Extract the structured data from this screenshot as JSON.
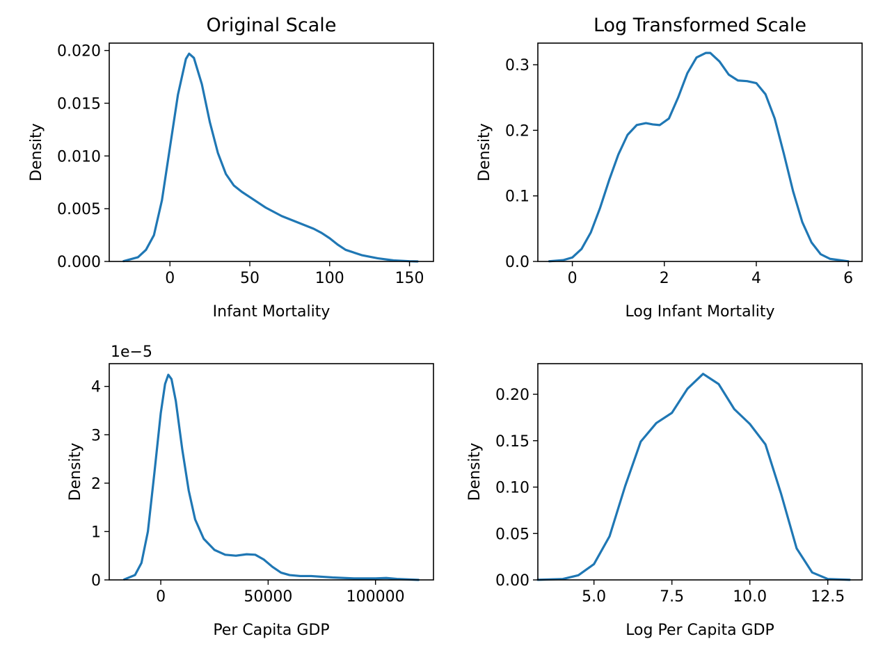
{
  "figure": {
    "line_color": "#1f77b4"
  },
  "chart_data": [
    {
      "type": "line",
      "title": "Original Scale",
      "xlabel": "Infant Mortality",
      "ylabel": "Density",
      "offset_label": "",
      "xlim": [
        -38,
        165
      ],
      "ylim": [
        0,
        0.0207
      ],
      "x_ticks": [
        0,
        50,
        100,
        150
      ],
      "x_tick_labels": [
        "0",
        "50",
        "100",
        "150"
      ],
      "y_ticks": [
        0,
        0.005,
        0.01,
        0.015,
        0.02
      ],
      "y_tick_labels": [
        "0.000",
        "0.005",
        "0.010",
        "0.015",
        "0.020"
      ],
      "grid": false,
      "series": [
        {
          "x": [
            -29,
            -20,
            -15,
            -10,
            -5,
            0,
            5,
            10,
            12,
            15,
            20,
            25,
            30,
            35,
            40,
            45,
            50,
            60,
            70,
            80,
            90,
            95,
            100,
            105,
            110,
            120,
            130,
            140,
            150,
            155
          ],
          "y": [
            3e-05,
            0.0004,
            0.0011,
            0.0025,
            0.0058,
            0.0108,
            0.0158,
            0.0192,
            0.0197,
            0.0193,
            0.0168,
            0.0132,
            0.0103,
            0.0083,
            0.0072,
            0.0066,
            0.0061,
            0.0051,
            0.0043,
            0.0037,
            0.0031,
            0.0027,
            0.0022,
            0.0016,
            0.0011,
            0.0006,
            0.0003,
            0.0001,
            2e-05,
            0.0
          ]
        }
      ]
    },
    {
      "type": "line",
      "title": "Log Transformed Scale",
      "xlabel": "Log Infant Mortality",
      "ylabel": "Density",
      "offset_label": "",
      "xlim": [
        -0.75,
        6.3
      ],
      "ylim": [
        0,
        0.333
      ],
      "x_ticks": [
        0,
        2,
        4,
        6
      ],
      "x_tick_labels": [
        "0",
        "2",
        "4",
        "6"
      ],
      "y_ticks": [
        0,
        0.1,
        0.2,
        0.3
      ],
      "y_tick_labels": [
        "0.0",
        "0.1",
        "0.2",
        "0.3"
      ],
      "grid": false,
      "series": [
        {
          "x": [
            -0.5,
            -0.2,
            0,
            0.2,
            0.4,
            0.6,
            0.8,
            1.0,
            1.2,
            1.4,
            1.6,
            1.75,
            1.9,
            2.1,
            2.3,
            2.5,
            2.7,
            2.9,
            3.0,
            3.2,
            3.4,
            3.6,
            3.8,
            4.0,
            4.2,
            4.4,
            4.6,
            4.8,
            5.0,
            5.2,
            5.4,
            5.6,
            6.0
          ],
          "y": [
            0.0003,
            0.002,
            0.006,
            0.019,
            0.044,
            0.081,
            0.124,
            0.163,
            0.193,
            0.208,
            0.211,
            0.209,
            0.208,
            0.218,
            0.25,
            0.287,
            0.311,
            0.318,
            0.318,
            0.305,
            0.285,
            0.276,
            0.275,
            0.272,
            0.255,
            0.218,
            0.164,
            0.107,
            0.06,
            0.029,
            0.011,
            0.004,
            0.0002
          ]
        }
      ]
    },
    {
      "type": "line",
      "title": "",
      "xlabel": "Per Capita GDP",
      "ylabel": "Density",
      "offset_label": "1e−5",
      "xlim": [
        -24000,
        127000
      ],
      "ylim": [
        0,
        4.47
      ],
      "x_ticks": [
        0,
        50000,
        100000
      ],
      "x_tick_labels": [
        "0",
        "50000",
        "100000"
      ],
      "y_ticks": [
        0,
        1,
        2,
        3,
        4
      ],
      "y_tick_labels": [
        "0",
        "1",
        "2",
        "3",
        "4"
      ],
      "grid": false,
      "series": [
        {
          "x": [
            -17000,
            -12000,
            -9000,
            -6000,
            -3000,
            0,
            2000,
            3500,
            5000,
            7000,
            10000,
            13000,
            16000,
            20000,
            25000,
            30000,
            35000,
            40000,
            44000,
            48000,
            52000,
            56000,
            60000,
            65000,
            70000,
            80000,
            90000,
            100000,
            105000,
            110000,
            120000
          ],
          "y": [
            0.01,
            0.1,
            0.35,
            1.0,
            2.2,
            3.45,
            4.05,
            4.24,
            4.15,
            3.7,
            2.7,
            1.85,
            1.25,
            0.85,
            0.62,
            0.52,
            0.5,
            0.53,
            0.52,
            0.42,
            0.27,
            0.15,
            0.1,
            0.08,
            0.08,
            0.05,
            0.03,
            0.03,
            0.04,
            0.02,
            0.0
          ]
        }
      ]
    },
    {
      "type": "line",
      "title": "",
      "xlabel": "Log Per Capita GDP",
      "ylabel": "Density",
      "offset_label": "",
      "xlim": [
        3.2,
        13.6
      ],
      "ylim": [
        0,
        0.233
      ],
      "x_ticks": [
        5.0,
        7.5,
        10.0,
        12.5
      ],
      "x_tick_labels": [
        "5.0",
        "7.5",
        "10.0",
        "12.5"
      ],
      "y_ticks": [
        0,
        0.05,
        0.1,
        0.15,
        0.2
      ],
      "y_tick_labels": [
        "0.00",
        "0.05",
        "0.10",
        "0.15",
        "0.20"
      ],
      "grid": false,
      "series": [
        {
          "x": [
            3.2,
            4.0,
            4.5,
            5.0,
            5.5,
            6.0,
            6.5,
            7.0,
            7.5,
            8.0,
            8.5,
            9.0,
            9.5,
            10.0,
            10.5,
            11.0,
            11.5,
            12.0,
            12.5,
            13.2
          ],
          "y": [
            0.0001,
            0.001,
            0.005,
            0.017,
            0.047,
            0.101,
            0.149,
            0.169,
            0.18,
            0.206,
            0.222,
            0.211,
            0.184,
            0.168,
            0.146,
            0.093,
            0.034,
            0.008,
            0.001,
            0.0001
          ]
        }
      ]
    }
  ]
}
